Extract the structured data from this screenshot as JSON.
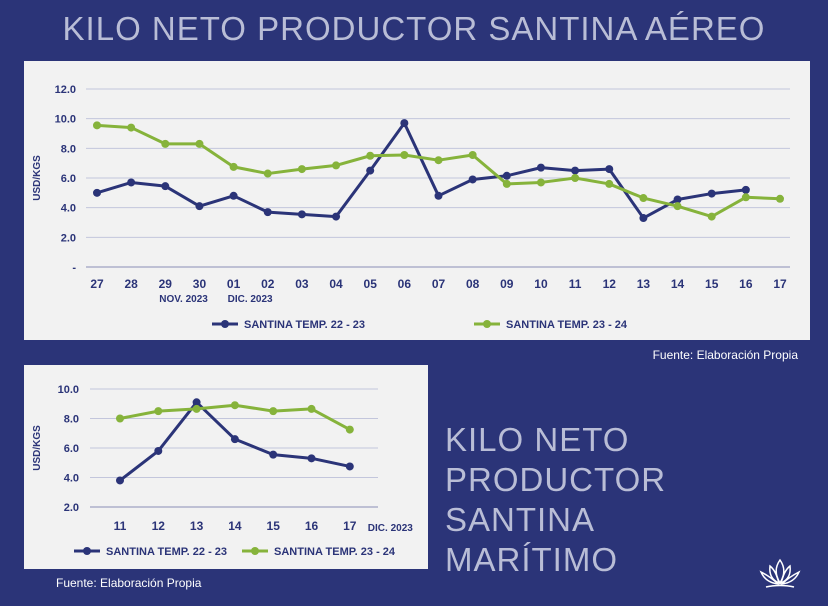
{
  "page": {
    "title_top": "KILO NETO PRODUCTOR SANTINA AÉREO",
    "side_title_lines": [
      "KILO NETO",
      "PRODUCTOR",
      "SANTINA",
      "MARÍTIMO"
    ],
    "source_top": "Fuente: Elaboración Propia",
    "source_bottom": "Fuente: Elaboración Propia",
    "logo_icon": "lotus-logo-icon"
  },
  "colors": {
    "series_a": "#2b3478",
    "series_b": "#86b33b",
    "panel_bg": "#f2f2f2",
    "page_bg": "#2b3478"
  },
  "chart_data": [
    {
      "type": "line",
      "title": "KILO NETO PRODUCTOR SANTINA AÉREO",
      "ylabel": "USD/KGS",
      "ylim": [
        0,
        12
      ],
      "yticks": [
        "-",
        "2.0",
        "4.0",
        "6.0",
        "8.0",
        "10.0",
        "12.0"
      ],
      "categories": [
        "27",
        "28",
        "29",
        "30",
        "01",
        "02",
        "03",
        "04",
        "05",
        "06",
        "07",
        "08",
        "09",
        "10",
        "11",
        "12",
        "13",
        "14",
        "15",
        "16",
        "17"
      ],
      "x_sublabels": [
        {
          "index": 2,
          "text": "NOV. 2023"
        },
        {
          "index": 4,
          "text": "DIC. 2023"
        }
      ],
      "grid": true,
      "legend_position": "bottom",
      "series": [
        {
          "name": "SANTINA TEMP. 22 - 23",
          "color": "#2b3478",
          "values": [
            5.0,
            5.7,
            5.45,
            4.1,
            4.8,
            3.7,
            3.55,
            3.4,
            6.5,
            9.7,
            4.8,
            5.9,
            6.15,
            6.7,
            6.5,
            6.6,
            3.3,
            4.55,
            4.95,
            5.2,
            null
          ]
        },
        {
          "name": "SANTINA TEMP. 23 - 24",
          "color": "#86b33b",
          "values": [
            9.55,
            9.4,
            8.3,
            8.3,
            6.75,
            6.3,
            6.6,
            6.85,
            7.5,
            7.55,
            7.2,
            7.55,
            5.6,
            5.7,
            6.0,
            5.6,
            4.65,
            4.1,
            3.4,
            4.7,
            4.6
          ]
        }
      ]
    },
    {
      "type": "line",
      "title": "KILO NETO PRODUCTOR SANTINA MARÍTIMO",
      "ylabel": "USD/KGS",
      "ylim": [
        2,
        10
      ],
      "yticks": [
        "2.0",
        "4.0",
        "6.0",
        "8.0",
        "10.0"
      ],
      "categories": [
        "11",
        "12",
        "13",
        "14",
        "15",
        "16",
        "17"
      ],
      "x_suffix_label": "DIC. 2023",
      "grid": true,
      "legend_position": "bottom",
      "series": [
        {
          "name": "SANTINA TEMP. 22 - 23",
          "color": "#2b3478",
          "values": [
            3.8,
            5.8,
            9.1,
            6.6,
            5.55,
            5.3,
            4.75
          ]
        },
        {
          "name": "SANTINA TEMP. 23 - 24",
          "color": "#86b33b",
          "values": [
            8.0,
            8.5,
            8.65,
            8.9,
            8.5,
            8.65,
            7.25
          ]
        }
      ]
    }
  ]
}
